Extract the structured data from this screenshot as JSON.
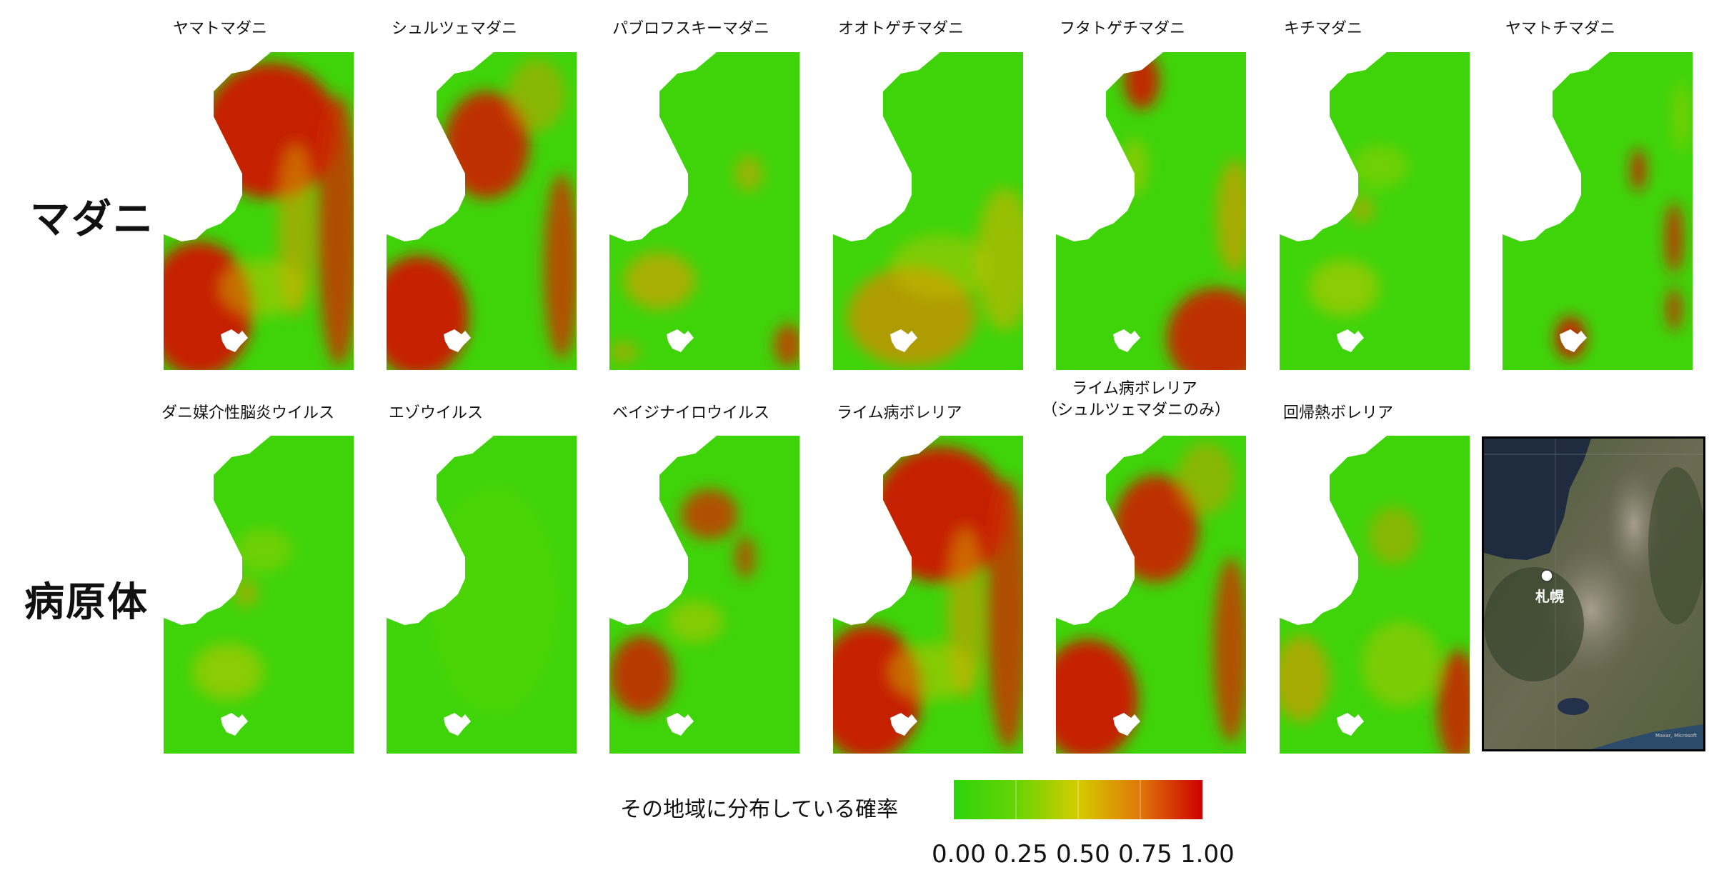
{
  "rows": {
    "ticks": "マダニ",
    "pathogens": "病原体"
  },
  "tick_panels": [
    {
      "title": "ヤマトマダニ",
      "pattern": "high-mountains"
    },
    {
      "title": "シュルツェマダニ",
      "pattern": "high-mountains-streaked"
    },
    {
      "title": "パブロフスキーマダニ",
      "pattern": "low-patches-west"
    },
    {
      "title": "オオトゲチマダニ",
      "pattern": "medium-southwest"
    },
    {
      "title": "フタトゲチマダニ",
      "pattern": "coast-and-southeast"
    },
    {
      "title": "キチマダニ",
      "pattern": "low-scattered"
    },
    {
      "title": "ヤマトチマダニ",
      "pattern": "sparse-red-spots"
    }
  ],
  "pathogen_panels": [
    {
      "title": "ダニ媒介性脳炎ウイルス",
      "pattern": "low-scattered"
    },
    {
      "title": "エゾウイルス",
      "pattern": "low-uniform"
    },
    {
      "title": "ベイジナイロウイルス",
      "pattern": "medium-patches"
    },
    {
      "title": "ライム病ボレリア",
      "pattern": "high-mountains"
    },
    {
      "title_lines": [
        "ライム病ボレリア",
        "（シュルツェマダニのみ）"
      ],
      "pattern": "high-mountains-streaked"
    },
    {
      "title": "回帰熱ボレリア",
      "pattern": "southeast-high"
    }
  ],
  "reference_map": {
    "label": "札幌",
    "marker": "white-circle-marker",
    "watermark": "Maxar, Microsoft"
  },
  "legend": {
    "title": "その地域に分布している確率",
    "ticks": [
      "0.00",
      "0.25",
      "0.50",
      "0.75",
      "1.00"
    ],
    "colors": {
      "low": "#2ed40a",
      "mid": "#d4cc00",
      "high": "#cc0000"
    }
  }
}
